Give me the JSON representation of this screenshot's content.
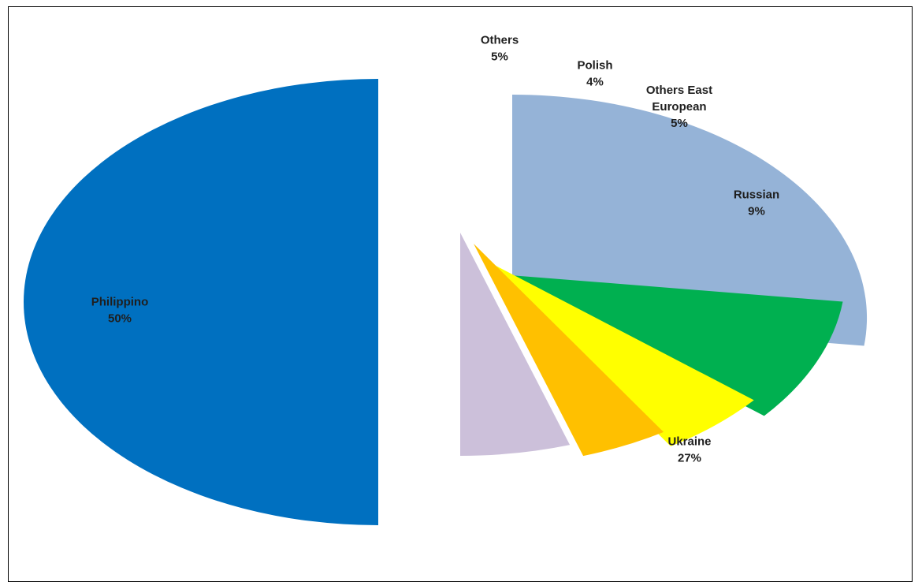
{
  "chart_data": {
    "type": "pie",
    "title": "",
    "exploded": true,
    "slices": [
      {
        "label": "Ukraine",
        "value_label": "27%",
        "value": 27,
        "color": "#95b3d7"
      },
      {
        "label": "Russian",
        "value_label": "9%",
        "value": 9,
        "color": "#00b050"
      },
      {
        "label": "Others East European",
        "label_lines": [
          "Others East",
          "European"
        ],
        "value_label": "5%",
        "value": 5,
        "color": "#ffff00"
      },
      {
        "label": "Polish",
        "value_label": "4%",
        "value": 4,
        "color": "#ffc000"
      },
      {
        "label": "Others",
        "value_label": "5%",
        "value": 5,
        "color": "#ccc0da"
      },
      {
        "label": "Philippino",
        "value_label": "50%",
        "value": 50,
        "color": "#0070c0"
      }
    ]
  }
}
